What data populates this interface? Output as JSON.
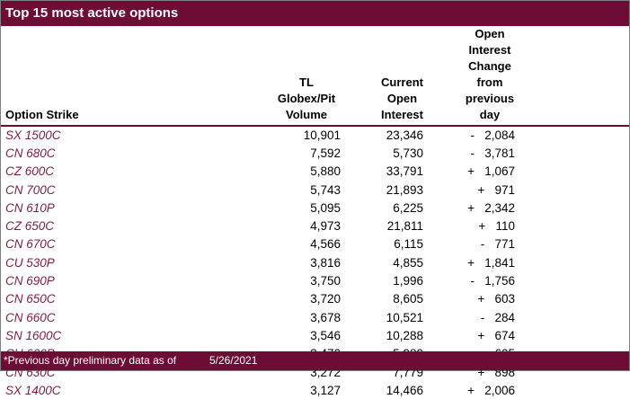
{
  "title": "Top 15 most active options",
  "columns": {
    "strike": "Option Strike",
    "volume": "TL Globex/Pit\nVolume",
    "open_interest": "Current\nOpen\nInterest",
    "change": "Open Interest\nChange from\nprevious day"
  },
  "rows": [
    {
      "strike": "SX 1500C",
      "volume": "10,901",
      "open_interest": "23,346",
      "change_sign": "-",
      "change": "2,084"
    },
    {
      "strike": "CN 680C",
      "volume": "7,592",
      "open_interest": "5,730",
      "change_sign": "-",
      "change": "3,781"
    },
    {
      "strike": "CZ 600C",
      "volume": "5,880",
      "open_interest": "33,791",
      "change_sign": "+",
      "change": "1,067"
    },
    {
      "strike": "CN 700C",
      "volume": "5,743",
      "open_interest": "21,893",
      "change_sign": "+",
      "change": "971"
    },
    {
      "strike": "CN 610P",
      "volume": "5,095",
      "open_interest": "6,225",
      "change_sign": "+",
      "change": "2,342"
    },
    {
      "strike": "CZ 650C",
      "volume": "4,973",
      "open_interest": "21,811",
      "change_sign": "+",
      "change": "110"
    },
    {
      "strike": "CN 670C",
      "volume": "4,566",
      "open_interest": "6,115",
      "change_sign": "-",
      "change": "771"
    },
    {
      "strike": "CU 530P",
      "volume": "3,816",
      "open_interest": "4,855",
      "change_sign": "+",
      "change": "1,841"
    },
    {
      "strike": "CN 690P",
      "volume": "3,750",
      "open_interest": "1,996",
      "change_sign": "-",
      "change": "1,756"
    },
    {
      "strike": "CN 650C",
      "volume": "3,720",
      "open_interest": "8,605",
      "change_sign": "+",
      "change": "603"
    },
    {
      "strike": "CN 660C",
      "volume": "3,678",
      "open_interest": "10,521",
      "change_sign": "-",
      "change": "284"
    },
    {
      "strike": "SN 1600C",
      "volume": "3,546",
      "open_interest": "10,288",
      "change_sign": "+",
      "change": "674"
    },
    {
      "strike": "CU 600P",
      "volume": "3,470",
      "open_interest": "5,989",
      "change_sign": "-",
      "change": "605"
    },
    {
      "strike": "CN 630C",
      "volume": "3,272",
      "open_interest": "7,779",
      "change_sign": "+",
      "change": "898"
    },
    {
      "strike": "SX 1400C",
      "volume": "3,127",
      "open_interest": "14,466",
      "change_sign": "+",
      "change": "2,006"
    }
  ],
  "footer": {
    "note": "*Previous day preliminary data as of",
    "date": "5/26/2021"
  },
  "colors": {
    "maroon": "#6D0D35",
    "strike_text": "#7C1C40"
  }
}
